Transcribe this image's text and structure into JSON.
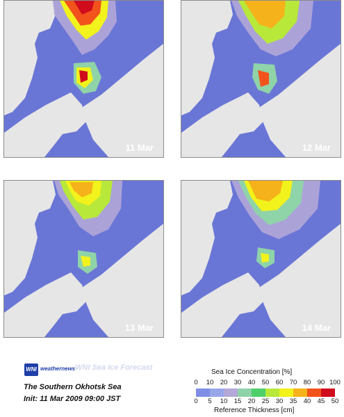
{
  "panels": [
    {
      "date": "11 Mar"
    },
    {
      "date": "12 Mar"
    },
    {
      "date": "13 Mar"
    },
    {
      "date": "14 Mar"
    }
  ],
  "footer": {
    "logo_mark": "WNI",
    "logo_text": "weathernews",
    "forecast_title": "WNI Sea Ice Forecast",
    "region": "The Southern Okhotsk Sea",
    "init": "Init: 11 Mar 2009 09:00 JST"
  },
  "legend": {
    "concentration_title": "Sea Ice Concentration [%]",
    "concentration_ticks": [
      "0",
      "10",
      "20",
      "30",
      "40",
      "50",
      "60",
      "70",
      "80",
      "90",
      "100"
    ],
    "thickness_title": "Reference Thickness [cm]",
    "thickness_ticks": [
      "0",
      "5",
      "10",
      "15",
      "20",
      "25",
      "30",
      "35",
      "40",
      "45",
      "50"
    ],
    "colors": [
      "#7f8fe6",
      "#9aa6ea",
      "#b3a8d8",
      "#8fd3a8",
      "#4fcf6a",
      "#b8e83a",
      "#f2f21c",
      "#f6b21a",
      "#f2531c",
      "#d00c1c"
    ]
  },
  "colors": {
    "ocean": "#6a76d6",
    "land": "#e6e6e6"
  }
}
